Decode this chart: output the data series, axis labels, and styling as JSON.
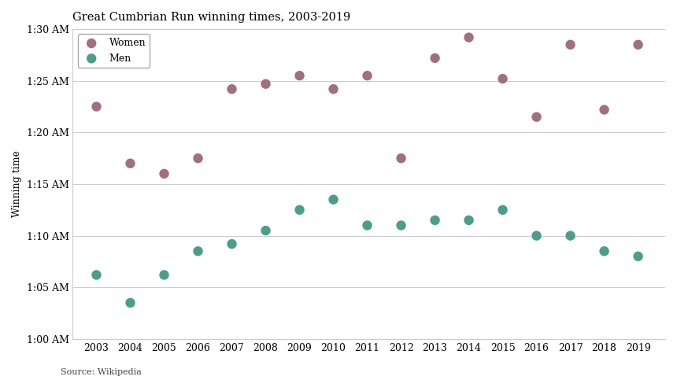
{
  "title": "Great Cumbrian Run winning times, 2003-2019",
  "ylabel": "Winning time",
  "source": "Source: Wikipedia",
  "women_color": "#a07080",
  "men_color": "#4a9e8a",
  "background_color": "#ffffff",
  "years": [
    2003,
    2004,
    2005,
    2006,
    2007,
    2008,
    2009,
    2010,
    2011,
    2012,
    2013,
    2014,
    2015,
    2016,
    2017,
    2018,
    2019
  ],
  "women_times_min": [
    82.5,
    77.0,
    76.0,
    77.5,
    84.2,
    84.7,
    85.5,
    84.2,
    85.5,
    77.5,
    87.2,
    89.2,
    85.2,
    81.5,
    88.5,
    82.2,
    88.5
  ],
  "men_times_min": [
    66.2,
    63.5,
    66.2,
    68.5,
    69.2,
    70.5,
    72.5,
    73.5,
    71.0,
    71.0,
    71.5,
    71.5,
    72.5,
    70.0,
    70.0,
    68.5,
    68.0
  ],
  "ylim_min": 60,
  "ylim_max": 90,
  "yticks": [
    60,
    65,
    70,
    75,
    80,
    85,
    90
  ],
  "ytick_labels": [
    "1:00 AM",
    "1:05 AM",
    "1:10 AM",
    "1:15 AM",
    "1:20 AM",
    "1:25 AM",
    "1:30 AM"
  ],
  "marker_size": 80,
  "title_fontsize": 10.5,
  "label_fontsize": 9,
  "tick_fontsize": 9
}
